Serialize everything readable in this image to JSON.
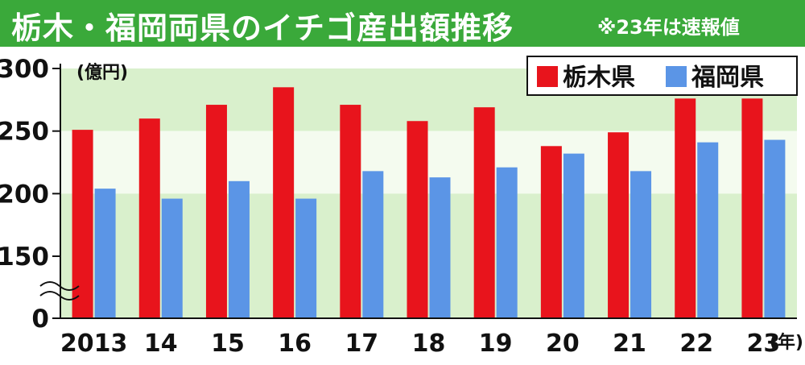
{
  "title": "栃木・福岡両県のイチゴ産出額推移",
  "note": "※23年は速報値",
  "chart_data": {
    "type": "bar",
    "ylabel": "(億円)",
    "xlabel": "(年)",
    "categories": [
      "2013",
      "14",
      "15",
      "16",
      "17",
      "18",
      "19",
      "20",
      "21",
      "22",
      "23"
    ],
    "series": [
      {
        "name": "栃木県",
        "color": "#e8141c",
        "values": [
          251,
          260,
          271,
          285,
          271,
          258,
          269,
          238,
          249,
          276,
          276
        ]
      },
      {
        "name": "福岡県",
        "color": "#5b95e6",
        "values": [
          204,
          196,
          210,
          196,
          218,
          213,
          221,
          232,
          218,
          241,
          243
        ]
      }
    ],
    "yticks": [
      0,
      150,
      200,
      250,
      300
    ],
    "axis_break": [
      0,
      150
    ],
    "ylim": [
      0,
      300
    ],
    "legend": "top-right",
    "grid_bands": true,
    "band_colors": {
      "light": "#f4fbef",
      "dark": "#d9f0cc"
    }
  }
}
